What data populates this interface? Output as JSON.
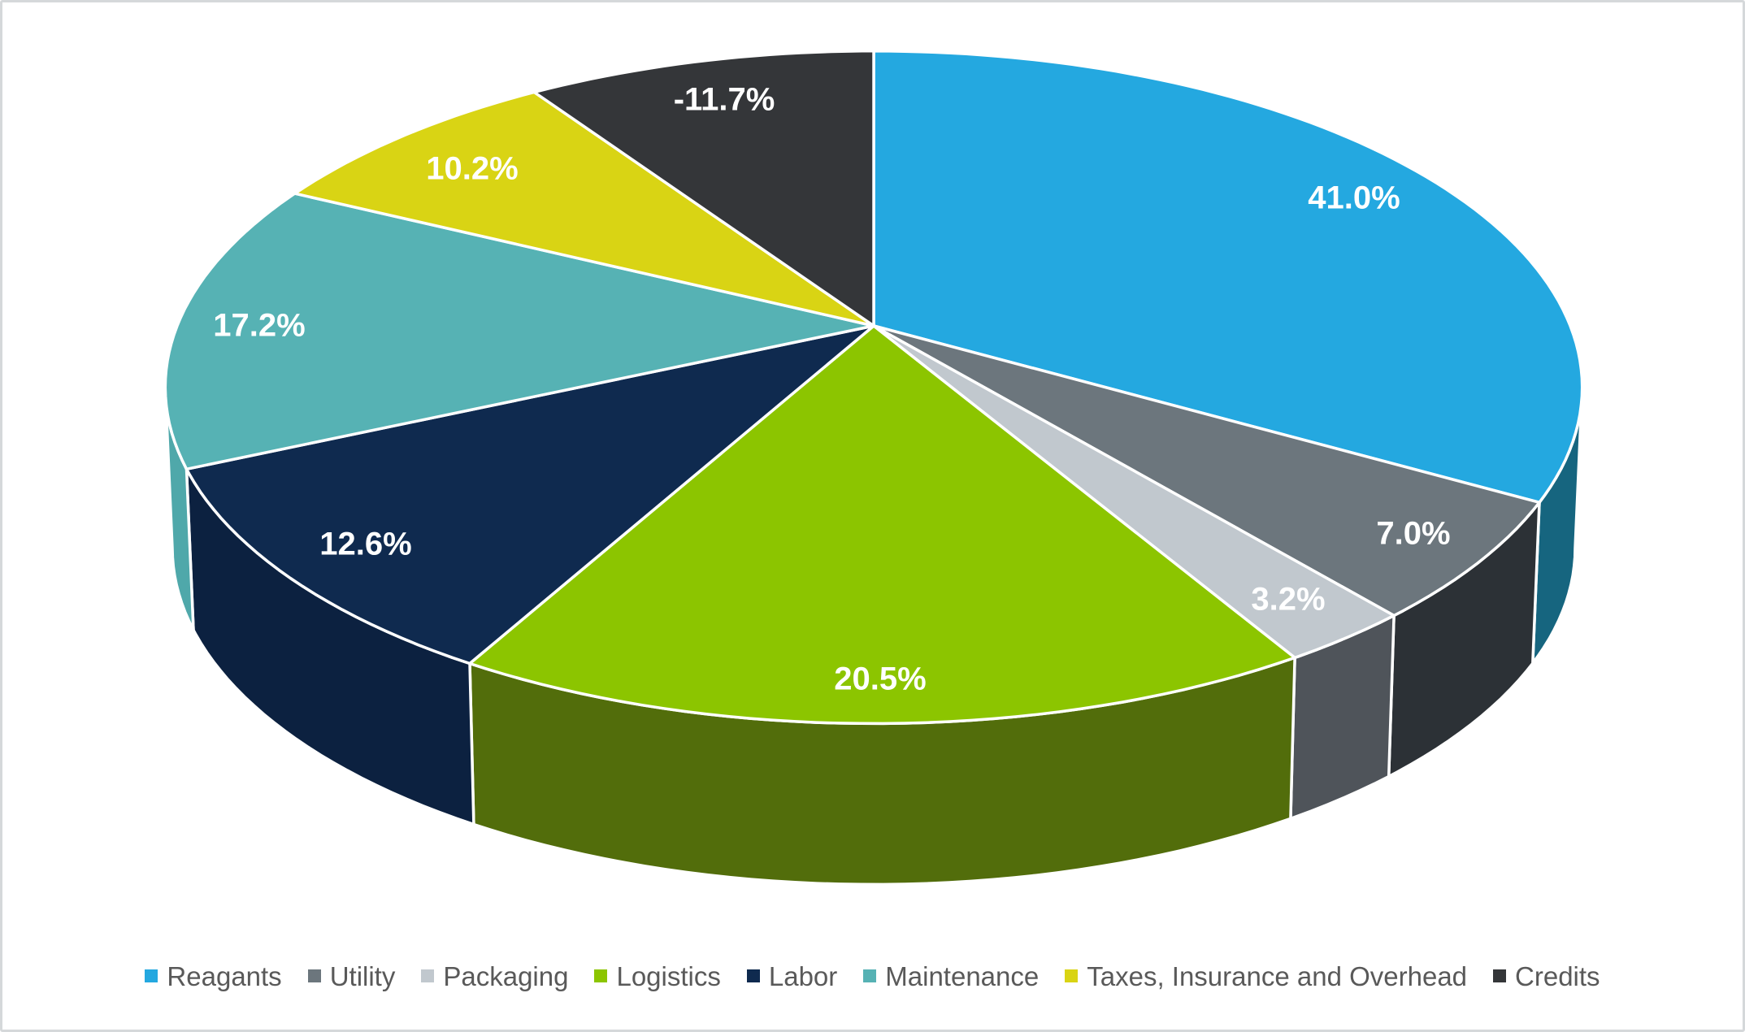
{
  "chart_data": {
    "type": "pie",
    "is_3d": true,
    "title": "",
    "start_angle_deg": 0,
    "direction": "clockwise",
    "note_negative_handling": "negative value plotted by absolute magnitude",
    "legend_position": "bottom",
    "background_color": "#ffffff",
    "frame_border_color": "#d5d8da",
    "label_text_color": "#ffffff",
    "legend_text_color": "#595959",
    "slices": [
      {
        "label": "Reagants",
        "value": 41.0,
        "display": "41.0%",
        "color": "#24a8e0",
        "wall_color": "#16657f"
      },
      {
        "label": "Utility",
        "value": 7.0,
        "display": "7.0%",
        "color": "#6c767d",
        "wall_color": "#2c3136"
      },
      {
        "label": "Packaging",
        "value": 3.2,
        "display": "3.2%",
        "color": "#c1c8ce",
        "wall_color": "#4f545a"
      },
      {
        "label": "Logistics",
        "value": 20.5,
        "display": "20.5%",
        "color": "#8cc500",
        "wall_color": "#526d0b"
      },
      {
        "label": "Labor",
        "value": 12.6,
        "display": "12.6%",
        "color": "#0f2a4f",
        "wall_color": "#0c2140"
      },
      {
        "label": "Maintenance",
        "value": 17.2,
        "display": "17.2%",
        "color": "#56b2b4",
        "wall_color": "#4fa8aa"
      },
      {
        "label": "Taxes, Insurance and Overhead",
        "value": 10.2,
        "display": "10.2%",
        "color": "#d9d414",
        "wall_color": "#97930e"
      },
      {
        "label": "Credits",
        "value": -11.7,
        "display": "-11.7%",
        "color": "#343639",
        "wall_color": "#222427"
      }
    ]
  }
}
